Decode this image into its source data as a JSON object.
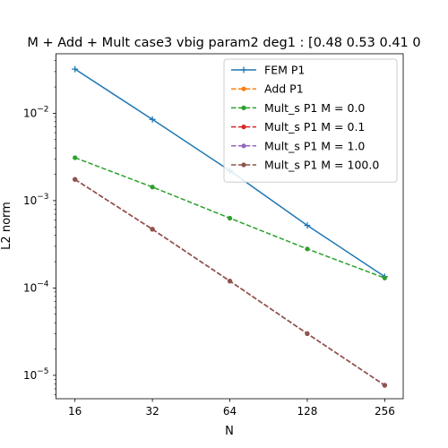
{
  "chart_data": {
    "type": "line",
    "title": "M + Add + Mult case3 vbig param2 deg1 : [0.48 0.53 0.41 0",
    "xlabel": "N",
    "ylabel": "L2 norm",
    "xscale": "log2",
    "yscale": "log10",
    "xlim": [
      13.5,
      302
    ],
    "ylim": [
      5.4e-06,
      0.048
    ],
    "x": [
      16,
      32,
      64,
      128,
      256
    ],
    "xticks": [
      {
        "value": 16,
        "label": "16"
      },
      {
        "value": 32,
        "label": "32"
      },
      {
        "value": 64,
        "label": "64"
      },
      {
        "value": 128,
        "label": "128"
      },
      {
        "value": 256,
        "label": "256"
      }
    ],
    "yticks": [
      {
        "value": 0.01,
        "base": "10",
        "exp": "−2"
      },
      {
        "value": 0.001,
        "base": "10",
        "exp": "−3"
      },
      {
        "value": 0.0001,
        "base": "10",
        "exp": "−4"
      },
      {
        "value": 1e-05,
        "base": "10",
        "exp": "−5"
      }
    ],
    "legend_position": "upper right",
    "grid": false,
    "series": [
      {
        "name": "FEM P1",
        "color": "#1f77b4",
        "dashed": false,
        "marker": "plus",
        "values": [
          0.032,
          0.0085,
          0.0022,
          0.00052,
          0.000135
        ]
      },
      {
        "name": "Add P1",
        "color": "#ff7f0e",
        "dashed": true,
        "marker": "dot",
        "values": [
          0.00175,
          0.00047,
          0.00012,
          3e-05,
          7.7e-06
        ]
      },
      {
        "name": "Mult_s P1 M = 0.0",
        "color": "#2ca02c",
        "dashed": true,
        "marker": "dot",
        "values": [
          0.0031,
          0.00143,
          0.00063,
          0.00028,
          0.00013
        ]
      },
      {
        "name": "Mult_s P1 M = 0.1",
        "color": "#d62728",
        "dashed": true,
        "marker": "dot",
        "values": [
          0.00175,
          0.00047,
          0.00012,
          3e-05,
          7.7e-06
        ]
      },
      {
        "name": "Mult_s P1 M = 1.0",
        "color": "#9467bd",
        "dashed": true,
        "marker": "dot",
        "values": [
          0.00175,
          0.00047,
          0.00012,
          3e-05,
          7.7e-06
        ]
      },
      {
        "name": "Mult_s P1 M = 100.0",
        "color": "#8c564b",
        "dashed": true,
        "marker": "dot",
        "values": [
          0.00175,
          0.00047,
          0.00012,
          3e-05,
          7.7e-06
        ]
      }
    ]
  }
}
